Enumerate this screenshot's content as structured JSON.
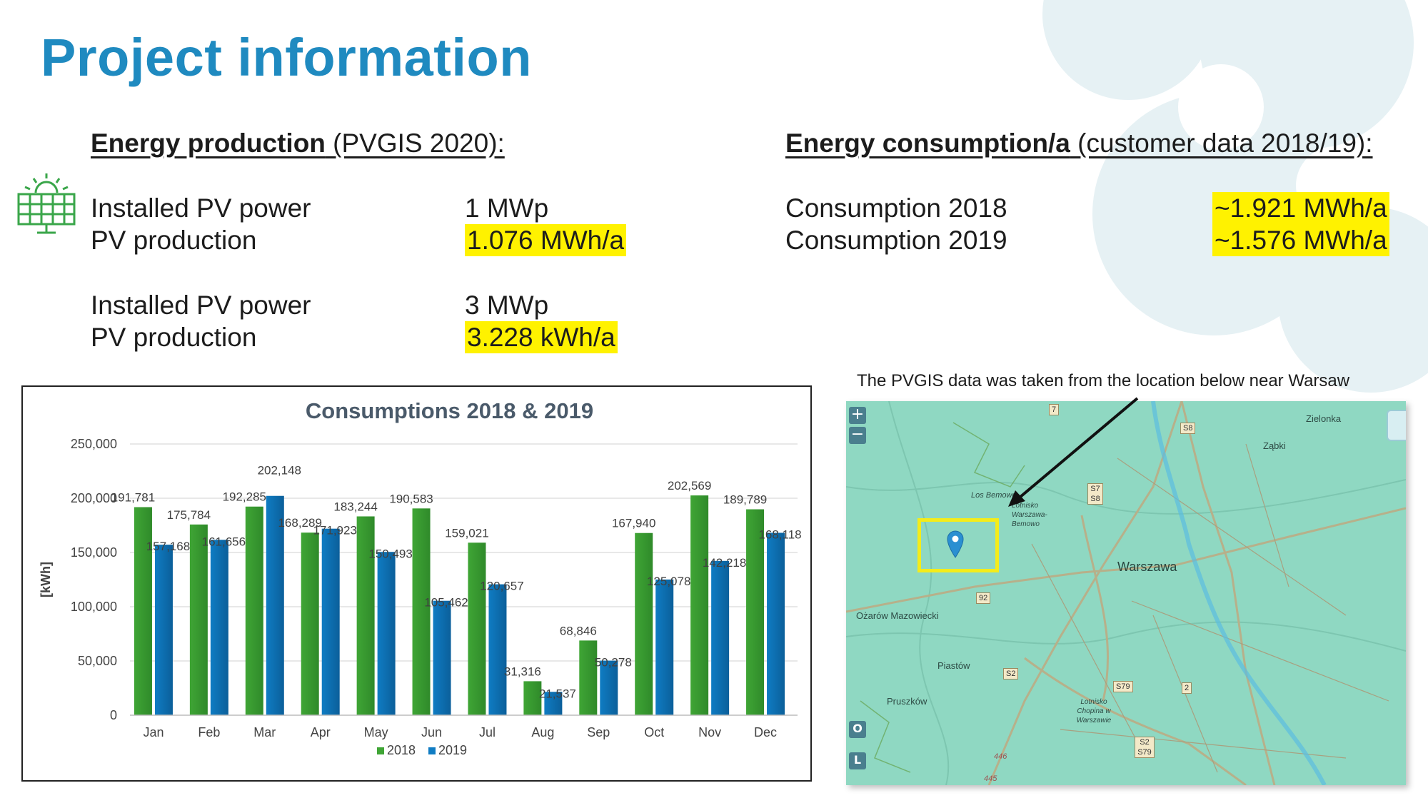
{
  "title": "Project information",
  "production": {
    "heading_bold": "Energy production",
    "heading_rest": " (PVGIS 2020):",
    "rows": [
      {
        "label": "Installed PV power",
        "value": "1 MWp"
      },
      {
        "label": "PV production",
        "value": "1.076 MWh/a"
      },
      {
        "label": "Installed PV power",
        "value": "3 MWp"
      },
      {
        "label": "PV production",
        "value": "3.228 kWh/a"
      }
    ]
  },
  "consumption": {
    "heading_bold": "Energy consumption/a",
    "heading_rest": " (customer data 2018/19):",
    "rows": [
      {
        "label": "Consumption 2018",
        "value": "~1.921 MWh/a"
      },
      {
        "label": "Consumption 2019",
        "value": "~1.576 MWh/a"
      }
    ]
  },
  "icons": {
    "solar_panel": "solar-panel-icon",
    "map_pin": "map-pin-icon"
  },
  "colors": {
    "title": "#1f8ac0",
    "highlight": "#fff200",
    "series_2018": "#3fa535",
    "series_2019": "#0f7cc3",
    "icon_green": "#3aa64a"
  },
  "chart_data": {
    "type": "bar",
    "title": "Consumptions 2018 & 2019",
    "ylabel": "[kWh]",
    "xlabel": "",
    "ylim": [
      0,
      250000
    ],
    "yticks": [
      "0",
      "50,000",
      "100,000",
      "150,000",
      "200,000",
      "250,000"
    ],
    "ytick_values": [
      0,
      50000,
      100000,
      150000,
      200000,
      250000
    ],
    "grid": true,
    "legend_position": "bottom",
    "categories": [
      "Jan",
      "Feb",
      "Mar",
      "Apr",
      "May",
      "Jun",
      "Jul",
      "Aug",
      "Sep",
      "Oct",
      "Nov",
      "Dec"
    ],
    "series": [
      {
        "name": "2018",
        "values": [
          191781,
          175784,
          192285,
          168289,
          183244,
          190583,
          159021,
          31316,
          68846,
          167940,
          202569,
          189789
        ],
        "labels": [
          "191,781",
          "175,784",
          "192,285",
          "168,289",
          "183,244",
          "190,583",
          "159,021",
          "31,316",
          "68,846",
          "167,940",
          "202,569",
          "189,789"
        ]
      },
      {
        "name": "2019",
        "values": [
          157168,
          161656,
          202148,
          171923,
          150493,
          105462,
          120657,
          21537,
          50278,
          125078,
          142218,
          168118
        ],
        "labels": [
          "157,168",
          "161,656",
          "202,148",
          "171,923",
          "150,493",
          "105,462",
          "120,657",
          "21,537",
          "50,278",
          "125,078",
          "142,218",
          "168,118"
        ]
      }
    ]
  },
  "map": {
    "caption": "The PVGIS data was taken from the location below near Warsaw",
    "zoom_in": "+",
    "zoom_out": "−",
    "btn_o": "O",
    "btn_l": "L",
    "city": "Warszawa",
    "places": [
      "Zielonka",
      "Ząbki",
      "Los Bemowo",
      "Lotnisko Warszawa-Bemowo",
      "Ożarów Mazowiecki",
      "Piastów",
      "Pruszków",
      "Lotnisko Chopina w Warszawie"
    ],
    "roads": [
      "7",
      "S8",
      "S7 S8",
      "92",
      "S2",
      "S79",
      "2",
      "S2 S79",
      "446",
      "445"
    ]
  }
}
